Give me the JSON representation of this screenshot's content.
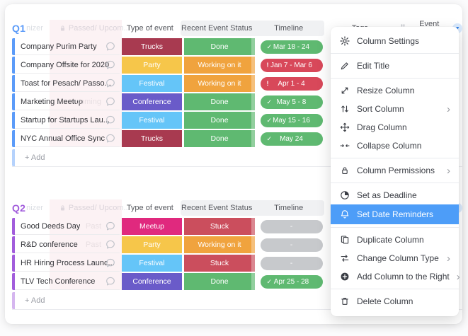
{
  "board": {
    "column_headers": {
      "type": "Type of event",
      "status": "Recent Event Status",
      "timeline": "Timeline",
      "tags": "Tags",
      "event_date": "Event Date"
    },
    "ghost_columns": {
      "partial": "nizer",
      "locked": "Passed/ Upcom..."
    },
    "groups": [
      {
        "title": "Q1",
        "color": "#5B9BF9",
        "add_label": "+ Add",
        "rows": [
          {
            "name": "Company Purim Party",
            "type": "Trucks",
            "status": "Done",
            "timeline": "Mar 18 - 24",
            "timeline_state": "done",
            "ghost": ""
          },
          {
            "name": "Company Offsite for 2020",
            "type": "Party",
            "status": "Working on it",
            "timeline": "Jan 7 - Mar 6",
            "timeline_state": "overdue",
            "ghost": ""
          },
          {
            "name": "Toast for Pesach/ Passo...",
            "type": "Festival",
            "status": "Working on it",
            "timeline": "Apr 1 - 4",
            "timeline_state": "overdue",
            "ghost": ""
          },
          {
            "name": "Marketing Meetup",
            "type": "Conference",
            "status": "Done",
            "timeline": "May 5 - 8",
            "timeline_state": "done",
            "ghost": "coming"
          },
          {
            "name": "Startup for Startups Lau...",
            "type": "Festival",
            "status": "Done",
            "timeline": "May 15 - 16",
            "timeline_state": "done",
            "ghost": ""
          },
          {
            "name": "NYC Annual Office Sync",
            "type": "Trucks",
            "status": "Done",
            "timeline": "May 24",
            "timeline_state": "done",
            "ghost": ""
          }
        ]
      },
      {
        "title": "Q2",
        "color": "#A25DDC",
        "add_label": "+ Add",
        "rows": [
          {
            "name": "Good Deeds Day",
            "type": "Meetup",
            "status": "Stuck",
            "timeline": "-",
            "timeline_state": "empty",
            "ghost": "Past"
          },
          {
            "name": "R&D conference",
            "type": "Party",
            "status": "Working on it",
            "timeline": "-",
            "timeline_state": "empty",
            "ghost": "Past"
          },
          {
            "name": "HR Hiring Process Launc...",
            "type": "Festival",
            "status": "Stuck",
            "timeline": "-",
            "timeline_state": "empty",
            "ghost": ""
          },
          {
            "name": "TLV Tech Conference",
            "type": "Conference",
            "status": "Done",
            "timeline": "Apr 25 - 28",
            "timeline_state": "done",
            "ghost": ""
          }
        ]
      }
    ]
  },
  "colors": {
    "labels": {
      "Trucks": "#A83A50",
      "Party": "#F6C64A",
      "Festival": "#65C5F8",
      "Conference": "#6A5BC9",
      "Meetup": "#E0297E",
      "Done": "#5FB971",
      "Working on it": "#F0A33E",
      "Stuck": "#CB4E5D"
    },
    "timeline": {
      "done": "#5FB971",
      "overdue": "#D8485A",
      "empty": "#C7C9CC"
    },
    "menu_highlight": "#4D9DF8"
  },
  "menu": {
    "groups": [
      [
        {
          "label": "Column Settings",
          "icon": "gear-icon"
        }
      ],
      [
        {
          "label": "Edit Title",
          "icon": "pencil-icon"
        }
      ],
      [
        {
          "label": "Resize Column",
          "icon": "resize-icon"
        },
        {
          "label": "Sort Column",
          "icon": "sort-icon",
          "submenu": true
        },
        {
          "label": "Drag Column",
          "icon": "drag-icon"
        },
        {
          "label": "Collapse Column",
          "icon": "collapse-icon"
        }
      ],
      [
        {
          "label": "Column Permissions",
          "icon": "lock-icon",
          "submenu": true
        }
      ],
      [
        {
          "label": "Set as Deadline",
          "icon": "deadline-icon"
        },
        {
          "label": "Set Date Reminders",
          "icon": "bell-icon",
          "selected": true
        }
      ],
      [
        {
          "label": "Duplicate Column",
          "icon": "duplicate-icon"
        },
        {
          "label": "Change Column Type",
          "icon": "change-type-icon",
          "submenu": true
        },
        {
          "label": "Add Column to the Right",
          "icon": "add-circle-icon",
          "submenu": true
        }
      ],
      [
        {
          "label": "Delete Column",
          "icon": "trash-icon"
        }
      ]
    ]
  }
}
